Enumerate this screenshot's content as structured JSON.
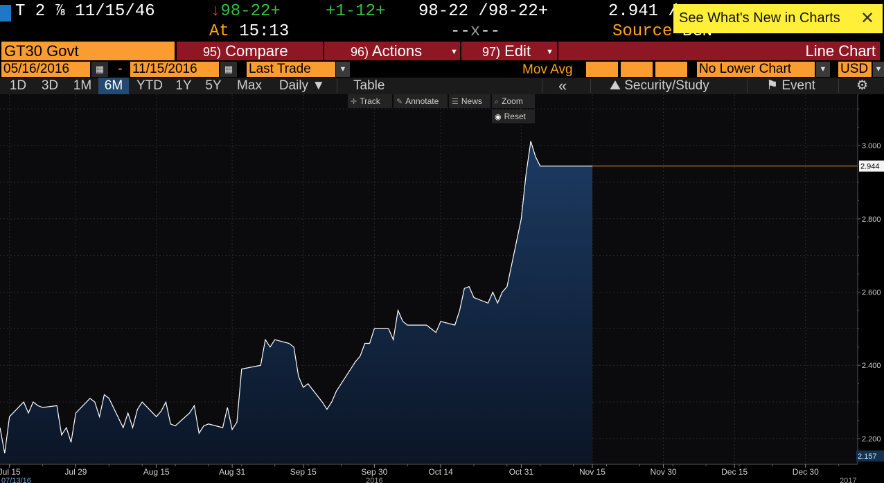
{
  "quote": {
    "security": "T 2 ⅞ 11/15/46",
    "last_arrow": "↓",
    "last_price": "98-22+",
    "change": "+1-12+",
    "bid_ask": "98-22 /98-22+",
    "yield": "2.941 /",
    "at_label": "At",
    "time": "15:13",
    "dash_left": "--",
    "dash_x": "x",
    "dash_right": "--",
    "source_label": "Source",
    "source_value": "BGN",
    "whats_new": "See What's New in Charts",
    "close_glyph": "✕"
  },
  "toolbar": {
    "ticker": "GT30 Govt",
    "compare_num": "95)",
    "compare_label": "Compare",
    "actions_num": "96)",
    "actions_label": "Actions",
    "edit_num": "97)",
    "edit_label": "Edit",
    "chart_type": "Line Chart"
  },
  "range": {
    "start_date": "05/16/2016",
    "dash": "-",
    "end_date": "11/15/2016",
    "field": "Last Trade",
    "mov_avg_label": "Mov Avg",
    "lower_chart": "No Lower Chart",
    "currency": "USD"
  },
  "tabs": {
    "items": [
      "1D",
      "3D",
      "1M",
      "6M",
      "YTD",
      "1Y",
      "5Y",
      "Max"
    ],
    "active": "6M",
    "interval": "Daily ▼",
    "table": "Table",
    "collapse": "«",
    "security_study": "Security/Study",
    "event": "Event",
    "settings_icon": "gear-icon"
  },
  "chart_tools": {
    "track": "Track",
    "annotate": "Annotate",
    "news": "News",
    "zoom": "Zoom",
    "reset": "Reset"
  },
  "colors": {
    "line": "#ffffff",
    "fill_top": "#1c3b63",
    "fill_bottom": "#0b1526",
    "last_line": "#f29b22",
    "tab_active": "#234a72",
    "field_orange": "#fa9c2f",
    "button_red": "#8f1724"
  },
  "chart_data": {
    "type": "area",
    "title": "",
    "xlabel": "",
    "ylabel": "",
    "x_range": [
      "2016-07-13",
      "2017-01-10"
    ],
    "ylim": [
      2.13,
      3.14
    ],
    "y_ticks": [
      2.2,
      2.4,
      2.6,
      2.8,
      3.0
    ],
    "y_tick_labels": [
      "2.200",
      "2.400",
      "2.600",
      "2.800",
      "3.000"
    ],
    "x_ticks": [
      {
        "date": "2016-07-15",
        "label": "Jul 15"
      },
      {
        "date": "2016-07-29",
        "label": "Jul 29"
      },
      {
        "date": "2016-08-15",
        "label": "Aug 15"
      },
      {
        "date": "2016-08-31",
        "label": "Aug 31"
      },
      {
        "date": "2016-09-15",
        "label": "Sep 15"
      },
      {
        "date": "2016-09-30",
        "label": "Sep 30"
      },
      {
        "date": "2016-10-14",
        "label": "Oct 14"
      },
      {
        "date": "2016-10-31",
        "label": "Oct 31"
      },
      {
        "date": "2016-11-15",
        "label": "Nov 15"
      },
      {
        "date": "2016-11-30",
        "label": "Nov 30"
      },
      {
        "date": "2016-12-15",
        "label": "Dec 15"
      },
      {
        "date": "2016-12-30",
        "label": "Dec 30"
      }
    ],
    "x_major_labels": [
      {
        "date": "2016-07-13",
        "label": "07/13/16"
      },
      {
        "date": "2016-09-30",
        "label": "2016"
      },
      {
        "date": "2017-01-08",
        "label": "2017"
      }
    ],
    "last_value": 2.944,
    "last_value_label": "2.944",
    "min_value_label": "2.157",
    "grid": true,
    "series": [
      {
        "x": [
          "2016-07-13",
          "2016-07-14",
          "2016-07-15",
          "2016-07-18",
          "2016-07-19",
          "2016-07-20",
          "2016-07-21",
          "2016-07-22",
          "2016-07-25",
          "2016-07-26",
          "2016-07-27",
          "2016-07-28",
          "2016-07-29",
          "2016-08-01",
          "2016-08-02",
          "2016-08-03",
          "2016-08-04",
          "2016-08-05",
          "2016-08-08",
          "2016-08-09",
          "2016-08-10",
          "2016-08-11",
          "2016-08-12",
          "2016-08-15",
          "2016-08-16",
          "2016-08-17",
          "2016-08-18",
          "2016-08-19",
          "2016-08-22",
          "2016-08-23",
          "2016-08-24",
          "2016-08-25",
          "2016-08-26",
          "2016-08-29",
          "2016-08-30",
          "2016-08-31",
          "2016-09-01",
          "2016-09-02",
          "2016-09-06",
          "2016-09-07",
          "2016-09-08",
          "2016-09-09",
          "2016-09-12",
          "2016-09-13",
          "2016-09-14",
          "2016-09-15",
          "2016-09-16",
          "2016-09-19",
          "2016-09-20",
          "2016-09-21",
          "2016-09-22",
          "2016-09-23",
          "2016-09-26",
          "2016-09-27",
          "2016-09-28",
          "2016-09-29",
          "2016-09-30",
          "2016-10-03",
          "2016-10-04",
          "2016-10-05",
          "2016-10-06",
          "2016-10-07",
          "2016-10-11",
          "2016-10-12",
          "2016-10-13",
          "2016-10-14",
          "2016-10-17",
          "2016-10-18",
          "2016-10-19",
          "2016-10-20",
          "2016-10-21",
          "2016-10-24",
          "2016-10-25",
          "2016-10-26",
          "2016-10-27",
          "2016-10-28",
          "2016-10-31",
          "2016-11-01",
          "2016-11-02",
          "2016-11-03",
          "2016-11-04",
          "2016-11-07",
          "2016-11-08",
          "2016-11-09",
          "2016-11-10",
          "2016-11-14",
          "2016-11-15"
        ],
        "y": [
          2.23,
          2.16,
          2.26,
          2.3,
          2.27,
          2.3,
          2.29,
          2.285,
          2.29,
          2.21,
          2.23,
          2.19,
          2.27,
          2.31,
          2.3,
          2.26,
          2.32,
          2.31,
          2.23,
          2.27,
          2.23,
          2.28,
          2.3,
          2.26,
          2.275,
          2.3,
          2.24,
          2.235,
          2.27,
          2.29,
          2.215,
          2.235,
          2.24,
          2.23,
          2.285,
          2.225,
          2.245,
          2.39,
          2.4,
          2.47,
          2.45,
          2.47,
          2.46,
          2.45,
          2.37,
          2.34,
          2.35,
          2.3,
          2.28,
          2.3,
          2.33,
          2.35,
          2.41,
          2.425,
          2.46,
          2.46,
          2.5,
          2.5,
          2.47,
          2.55,
          2.52,
          2.51,
          2.51,
          2.5,
          2.49,
          2.52,
          2.51,
          2.55,
          2.61,
          2.615,
          2.585,
          2.57,
          2.6,
          2.57,
          2.6,
          2.615,
          2.8,
          2.92,
          3.012,
          2.97,
          2.944,
          2.944,
          2.944,
          2.944,
          2.944,
          2.944,
          2.944
        ]
      }
    ]
  }
}
